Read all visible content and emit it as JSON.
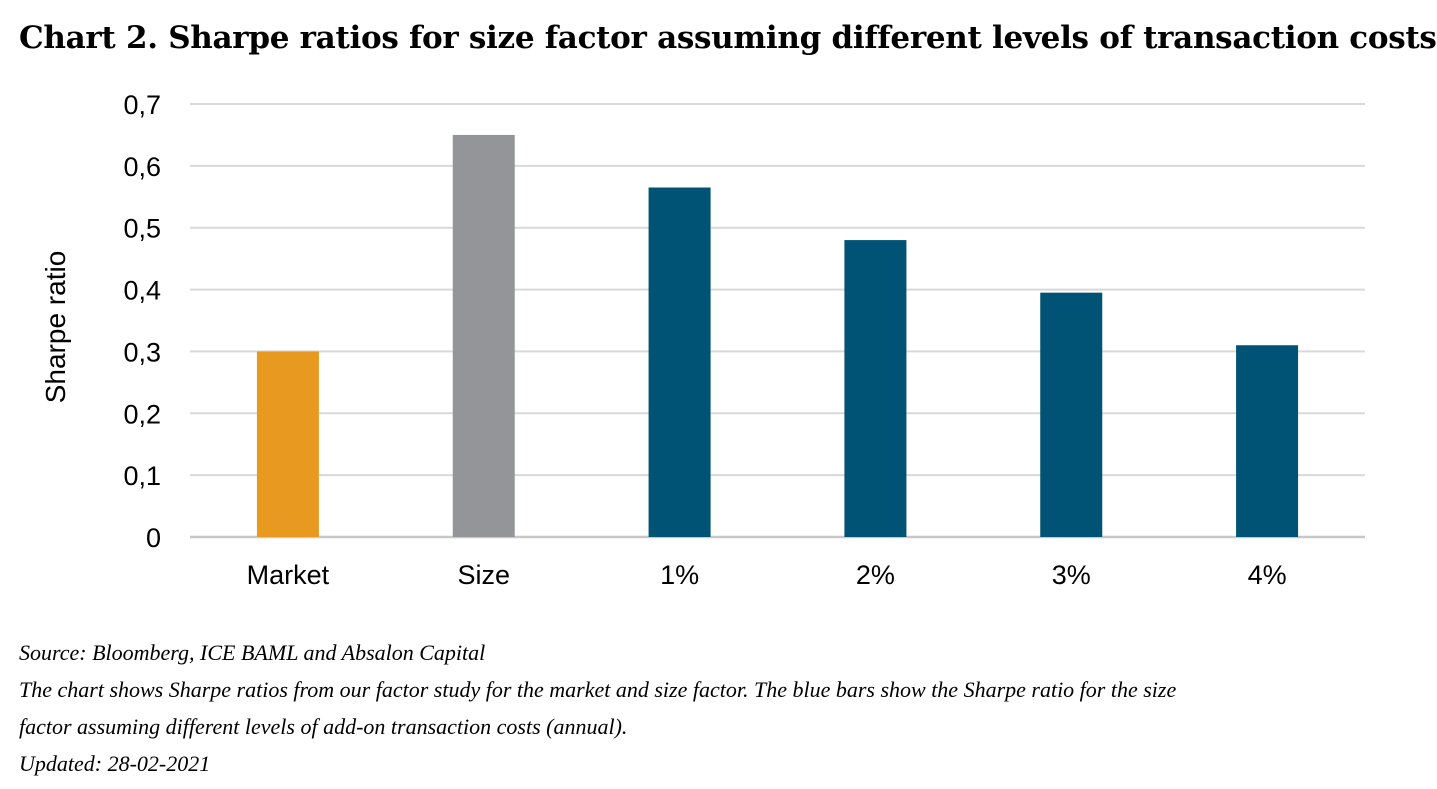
{
  "chart_data": {
    "type": "bar",
    "title": "Chart 2. Sharpe ratios for size factor assuming different levels of transaction costs",
    "ylabel": "Sharpe ratio",
    "xlabel": "",
    "categories": [
      "Market",
      "Size",
      "1%",
      "2%",
      "3%",
      "4%"
    ],
    "values": [
      0.3,
      0.65,
      0.565,
      0.48,
      0.395,
      0.31
    ],
    "ylim": [
      0,
      0.7
    ],
    "yticks": [
      "0",
      "0,1",
      "0,2",
      "0,3",
      "0,4",
      "0,5",
      "0,6",
      "0,7"
    ],
    "grid": true,
    "colors": [
      "#E8991F",
      "#939598",
      "#005374",
      "#005374",
      "#005374",
      "#005374"
    ]
  },
  "notes": {
    "source": "Source: Bloomberg, ICE BAML and Absalon Capital",
    "description_line1": "The chart shows Sharpe ratios from our factor study for the market and size factor. The blue bars show the Sharpe ratio for the size",
    "description_line2": "factor assuming different levels of add-on transaction costs (annual).",
    "updated": "Updated: 28-02-2021"
  }
}
